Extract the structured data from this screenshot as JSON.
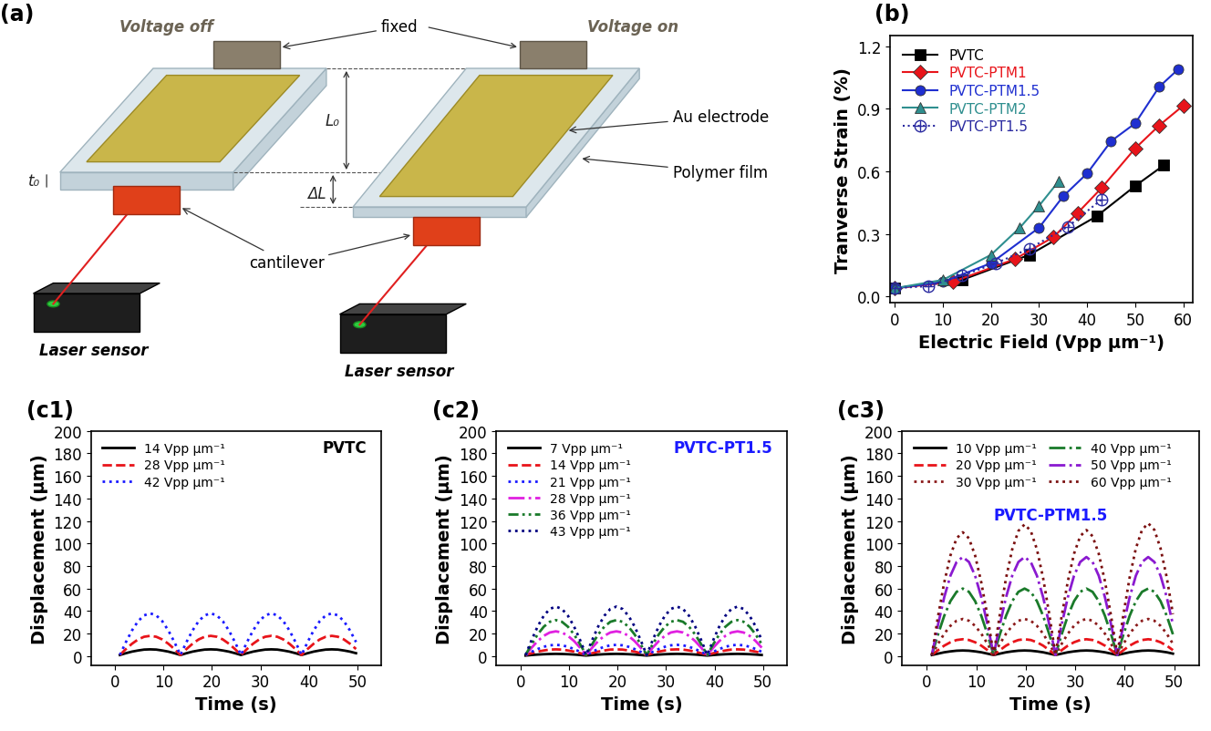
{
  "diagram": {
    "panel": "(a)",
    "labels": {
      "voltage_off": "Voltage off",
      "voltage_on": "Voltage on",
      "fixed": "fixed",
      "length": "L₀",
      "thickness": "t₀",
      "elongation": "ΔL",
      "electrode": "Au electrode",
      "film": "Polymer film",
      "cantilever": "cantilever",
      "sensor": "Laser sensor"
    }
  },
  "chart_data": [
    {
      "type": "line",
      "title": "(b)",
      "x_label": "Electric Field (Vpp μm⁻¹)",
      "y_label": "Tranverse Strain (%)",
      "xlim": [
        -1,
        62
      ],
      "ylim": [
        -0.03,
        1.25
      ],
      "xticks": [
        0,
        10,
        20,
        30,
        40,
        50,
        60
      ],
      "yticks": [
        {
          "value": 0,
          "label": "0.0"
        },
        0.3,
        0.6,
        0.9,
        1.2
      ],
      "legend": "upper left",
      "series": [
        {
          "name": "PVTC",
          "color": "#000000",
          "marker": "square",
          "line_style": "solid",
          "x": [
            0,
            14,
            28,
            42,
            50,
            56
          ],
          "values": [
            0.04,
            0.08,
            0.2,
            0.385,
            0.53,
            0.63
          ]
        },
        {
          "name": "PVTC-PTM1",
          "color": "#e8141a",
          "marker": "diamond",
          "line_style": "solid",
          "x": [
            0,
            12,
            25,
            33,
            38,
            43,
            50,
            55,
            60
          ],
          "values": [
            0.04,
            0.07,
            0.18,
            0.285,
            0.4,
            0.52,
            0.71,
            0.82,
            0.915
          ]
        },
        {
          "name": "PVTC-PTM1.5",
          "color": "#1f2fd0",
          "marker": "circle",
          "line_style": "solid",
          "x": [
            0,
            10,
            20,
            30,
            35,
            40,
            45,
            50,
            55,
            59
          ],
          "values": [
            0.04,
            0.07,
            0.16,
            0.33,
            0.48,
            0.59,
            0.745,
            0.83,
            1.005,
            1.09
          ]
        },
        {
          "name": "PVTC-PTM2",
          "color": "#2f8f8f",
          "marker": "triangle",
          "line_style": "solid",
          "x": [
            0,
            10,
            20,
            26,
            30,
            34
          ],
          "values": [
            0.04,
            0.08,
            0.2,
            0.33,
            0.435,
            0.55
          ]
        },
        {
          "name": "PVTC-PT1.5",
          "color": "#2a2aa0",
          "marker": "circle_cross",
          "line_style": "dotted",
          "x": [
            0,
            7,
            14,
            21,
            28,
            36,
            43
          ],
          "values": [
            0.04,
            0.05,
            0.1,
            0.16,
            0.23,
            0.335,
            0.465
          ]
        }
      ]
    },
    {
      "type": "line",
      "title": "(c1)",
      "annotation": "PVTC",
      "x_label": "Time (s)",
      "y_label": "Displacement (μm)",
      "xlim": [
        -5,
        55
      ],
      "ylim": [
        -8,
        200
      ],
      "xticks": [
        0,
        10,
        20,
        30,
        40,
        50
      ],
      "yticks": [
        0,
        20,
        40,
        60,
        80,
        100,
        120,
        140,
        160,
        180,
        200
      ],
      "legend": "upper left",
      "x": [
        1,
        2.25,
        3.5,
        4.75,
        6,
        7.25,
        8.5,
        9.75,
        11,
        12.25,
        13.5,
        14.75,
        16,
        17.25,
        18.5,
        19.75,
        21,
        22.25,
        23.5,
        24.75,
        26,
        27.25,
        28.5,
        29.75,
        31,
        32.25,
        33.5,
        34.75,
        36,
        37.25,
        38.5,
        39.75,
        41,
        42.25,
        43.5,
        44.75,
        46,
        47.25,
        48.5,
        49.75
      ],
      "series": [
        {
          "name": "14 Vpp μm⁻¹",
          "color": "#000000",
          "line_style": "solid",
          "values": [
            1,
            2.6,
            4,
            5,
            5.8,
            6,
            5.8,
            5,
            4,
            2.6,
            1,
            2.6,
            4,
            5,
            5.8,
            6,
            5.8,
            5,
            4,
            2.6,
            1,
            2.6,
            4,
            5,
            5.8,
            6,
            5.8,
            5,
            4,
            2.6,
            1,
            2.6,
            4,
            5,
            5.8,
            6,
            5.8,
            5,
            4,
            2.6
          ]
        },
        {
          "name": "28 Vpp μm⁻¹",
          "color": "#e8141a",
          "line_style": "dashed",
          "values": [
            1,
            6.3,
            11,
            14.8,
            17.2,
            18,
            17.2,
            14.8,
            11,
            6.3,
            1,
            6.3,
            11,
            14.8,
            17.2,
            18,
            17.2,
            14.8,
            11,
            6.3,
            1,
            6.3,
            11,
            14.8,
            17.2,
            18,
            17.2,
            14.8,
            11,
            6.3,
            1,
            6.3,
            11,
            14.8,
            17.2,
            18,
            17.2,
            14.8,
            11,
            6.3
          ]
        },
        {
          "name": "42 Vpp μm⁻¹",
          "color": "#1a1aff",
          "line_style": "dotted",
          "values": [
            1,
            12.5,
            22.8,
            31,
            36.2,
            38,
            36.2,
            31,
            22.8,
            12.5,
            1,
            12.5,
            22.8,
            31,
            36.2,
            38,
            36.2,
            31,
            22.8,
            12.5,
            1,
            12.5,
            22.8,
            31,
            36.2,
            38,
            36.2,
            31,
            22.8,
            12.5,
            1,
            12.5,
            22.8,
            31,
            36.2,
            38,
            36.2,
            31,
            22.8,
            12.5
          ]
        }
      ]
    },
    {
      "type": "line",
      "title": "(c2)",
      "annotation": "PVTC-PT1.5",
      "x_label": "Time (s)",
      "y_label": "Displacement (μm)",
      "xlim": [
        -5,
        55
      ],
      "ylim": [
        -8,
        200
      ],
      "xticks": [
        0,
        10,
        20,
        30,
        40,
        50
      ],
      "yticks": [
        0,
        20,
        40,
        60,
        80,
        100,
        120,
        140,
        160,
        180,
        200
      ],
      "legend": "upper left",
      "x": [
        1,
        2.25,
        3.5,
        4.75,
        6,
        7.25,
        8.5,
        9.75,
        11,
        12.25,
        13.5,
        14.75,
        16,
        17.25,
        18.5,
        19.75,
        21,
        22.25,
        23.5,
        24.75,
        26,
        27.25,
        28.5,
        29.75,
        31,
        32.25,
        33.5,
        34.75,
        36,
        37.25,
        38.5,
        39.75,
        41,
        42.25,
        43.5,
        44.75,
        46,
        47.25,
        48.5,
        49.75
      ],
      "series": [
        {
          "name": "7 Vpp μm⁻¹",
          "color": "#000000",
          "line_style": "solid",
          "values": [
            0.5,
            1,
            1.4,
            1.7,
            1.9,
            2,
            1.9,
            1.7,
            1.4,
            1,
            0.5,
            1,
            1.4,
            1.7,
            1.9,
            2,
            1.9,
            1.7,
            1.4,
            1,
            0.5,
            1,
            1.4,
            1.7,
            1.9,
            2,
            1.9,
            1.7,
            1.4,
            1,
            0.5,
            1,
            1.4,
            1.7,
            1.9,
            2,
            1.9,
            1.7,
            1.4,
            1
          ]
        },
        {
          "name": "14 Vpp μm⁻¹",
          "color": "#e8141a",
          "line_style": "dashed",
          "values": [
            1,
            2.6,
            4,
            5,
            5.8,
            6,
            5.8,
            5,
            4,
            2.6,
            1,
            2.6,
            4,
            5,
            5.8,
            6,
            5.8,
            5,
            4,
            2.6,
            1,
            2.6,
            4,
            5,
            5.8,
            6,
            5.8,
            5,
            4,
            2.6,
            1,
            2.6,
            4,
            5,
            5.8,
            6,
            5.8,
            5,
            4,
            2.6
          ]
        },
        {
          "name": "21 Vpp μm⁻¹",
          "color": "#1a1aff",
          "line_style": "dotted",
          "values": [
            1,
            3.8,
            6.3,
            8.3,
            9.6,
            10,
            9.6,
            8.3,
            6.3,
            3.8,
            1,
            3.8,
            6.3,
            8.3,
            9.6,
            10,
            9.6,
            8.3,
            6.3,
            3.8,
            1,
            3.8,
            6.3,
            8.3,
            9.6,
            10,
            9.6,
            8.3,
            6.3,
            3.8,
            1,
            3.8,
            6.3,
            8.3,
            9.6,
            10,
            9.6,
            8.3,
            6.3,
            3.8
          ]
        },
        {
          "name": "28 Vpp μm⁻¹",
          "color": "#e020e0",
          "line_style": "dashdot",
          "values": [
            1,
            7.5,
            13.4,
            18,
            21,
            22,
            21,
            18,
            13.4,
            7.5,
            1,
            7.5,
            13.4,
            18,
            21,
            22,
            21,
            18,
            13.4,
            7.5,
            1,
            7.5,
            13.4,
            18,
            21,
            22,
            21,
            18,
            13.4,
            7.5,
            1,
            7.5,
            13.4,
            18,
            21,
            22,
            21,
            18,
            13.4,
            7.5
          ]
        },
        {
          "name": "36 Vpp μm⁻¹",
          "color": "#1a7a2a",
          "line_style": "dashdotdot",
          "values": [
            1,
            10.6,
            19.3,
            26.1,
            30.5,
            32,
            30.5,
            26.1,
            19.3,
            10.6,
            1,
            10.6,
            19.3,
            26.1,
            30.5,
            32,
            30.5,
            26.1,
            19.3,
            10.6,
            1,
            10.6,
            19.3,
            26.1,
            30.5,
            32,
            30.5,
            26.1,
            19.3,
            10.6,
            1,
            10.6,
            19.3,
            26.1,
            30.5,
            32,
            30.5,
            26.1,
            19.3,
            10.6
          ]
        },
        {
          "name": "43 Vpp μm⁻¹",
          "color": "#000080",
          "line_style": "dotted",
          "values": [
            1,
            14.3,
            26.4,
            35.8,
            41.9,
            44,
            41.9,
            35.8,
            26.4,
            14.3,
            1,
            14.3,
            26.4,
            35.8,
            41.9,
            44,
            41.9,
            35.8,
            26.4,
            14.3,
            1,
            14.3,
            26.4,
            35.8,
            41.9,
            44,
            41.9,
            35.8,
            26.4,
            14.3,
            1,
            14.3,
            26.4,
            35.8,
            41.9,
            44,
            41.9,
            35.8,
            26.4,
            14.3
          ]
        }
      ]
    },
    {
      "type": "line",
      "title": "(c3)",
      "annotation": "PVTC-PTM1.5",
      "x_label": "Time (s)",
      "y_label": "Displacement (μm)",
      "xlim": [
        -5,
        55
      ],
      "ylim": [
        -8,
        200
      ],
      "xticks": [
        0,
        10,
        20,
        30,
        40,
        50
      ],
      "yticks": [
        0,
        20,
        40,
        60,
        80,
        100,
        120,
        140,
        160,
        180,
        200
      ],
      "legend": "upper left",
      "x": [
        1,
        2.25,
        3.5,
        4.75,
        6,
        7.25,
        8.5,
        9.75,
        11,
        12.25,
        13.5,
        14.75,
        16,
        17.25,
        18.5,
        19.75,
        21,
        22.25,
        23.5,
        24.75,
        26,
        27.25,
        28.5,
        29.75,
        31,
        32.25,
        33.5,
        34.75,
        36,
        37.25,
        38.5,
        39.75,
        41,
        42.25,
        43.5,
        44.75,
        46,
        47.25,
        48.5,
        49.75
      ],
      "series": [
        {
          "name": "10 Vpp μm⁻¹",
          "color": "#000000",
          "line_style": "solid",
          "values": [
            1,
            2.2,
            3.4,
            4.2,
            4.8,
            5,
            4.8,
            4.2,
            3.4,
            2.2,
            1,
            2.2,
            3.4,
            4.2,
            4.8,
            5,
            4.8,
            4.2,
            3.4,
            2.2,
            1,
            2.2,
            3.4,
            4.2,
            4.8,
            5,
            4.8,
            4.2,
            3.4,
            2.2,
            1,
            2.2,
            3.4,
            4.2,
            4.8,
            5,
            4.8,
            4.2,
            3.4,
            2.2
          ]
        },
        {
          "name": "20 Vpp μm⁻¹",
          "color": "#e8141a",
          "line_style": "dashed",
          "values": [
            1,
            5.3,
            9.3,
            12.3,
            14.3,
            15,
            14.3,
            12.3,
            9.3,
            5.3,
            1,
            5.3,
            9.3,
            12.3,
            14.3,
            15,
            14.3,
            12.3,
            9.3,
            5.3,
            1,
            5.3,
            9.3,
            12.3,
            14.3,
            15,
            14.3,
            12.3,
            9.3,
            5.3,
            1,
            5.3,
            9.3,
            12.3,
            14.3,
            15,
            14.3,
            12.3,
            9.3,
            5.3
          ]
        },
        {
          "name": "30 Vpp μm⁻¹",
          "color": "#8b1a1a",
          "line_style": "dotted",
          "values": [
            1,
            10.9,
            19.9,
            26.9,
            31.4,
            33,
            31.4,
            26.9,
            19.9,
            10.9,
            1,
            10.9,
            19.9,
            26.9,
            31.4,
            33,
            31.4,
            26.9,
            19.9,
            10.9,
            1,
            10.9,
            19.9,
            26.9,
            31.4,
            33,
            31.4,
            26.9,
            19.9,
            10.9,
            1,
            10.9,
            19.9,
            26.9,
            31.4,
            33,
            31.4,
            26.9,
            19.9,
            10.9
          ]
        },
        {
          "name": "40 Vpp μm⁻¹",
          "color": "#1a7a2a",
          "line_style": "dashdot",
          "values": [
            1,
            19.3,
            35.8,
            48.8,
            57.1,
            60,
            57.1,
            48.8,
            35.8,
            19.3,
            1,
            19.3,
            35.8,
            48.8,
            57.1,
            60,
            57.1,
            48.8,
            35.8,
            19.3,
            1,
            19.3,
            35.8,
            48.8,
            57.1,
            60,
            57.1,
            48.8,
            35.8,
            19.3,
            1,
            19.3,
            35.8,
            48.8,
            57.1,
            60,
            57.1,
            48.8,
            35.8,
            19.3
          ]
        },
        {
          "name": "50 Vpp μm⁻¹",
          "color": "#8a1ad0",
          "line_style": "dashdot",
          "values": [
            1,
            28,
            52.3,
            71.4,
            83.6,
            88,
            83.6,
            71.4,
            52.3,
            28,
            1,
            28,
            52.3,
            71.4,
            83.6,
            88,
            83.6,
            71.4,
            52.3,
            28,
            1,
            28,
            52.3,
            71.4,
            83.6,
            88,
            83.6,
            71.4,
            52.3,
            28,
            1,
            28,
            52.3,
            71.4,
            83.6,
            88,
            83.6,
            71.4,
            52.3,
            28
          ]
        },
        {
          "name": "60 Vpp μm⁻¹",
          "color": "#7a0f0f",
          "line_style": "dotted",
          "values": [
            1,
            35.4,
            65.3,
            89.3,
            104.6,
            110,
            104.6,
            89.3,
            65.3,
            35.4,
            1,
            37,
            69.3,
            94.8,
            111.2,
            117,
            111.2,
            94.8,
            69.3,
            37,
            1,
            35.4,
            66.5,
            90.9,
            106.5,
            112,
            106.5,
            90.9,
            66.5,
            35.4,
            1,
            37.3,
            69.9,
            95.6,
            112.1,
            118,
            112.1,
            95.6,
            69.9,
            37.3
          ]
        }
      ]
    }
  ]
}
